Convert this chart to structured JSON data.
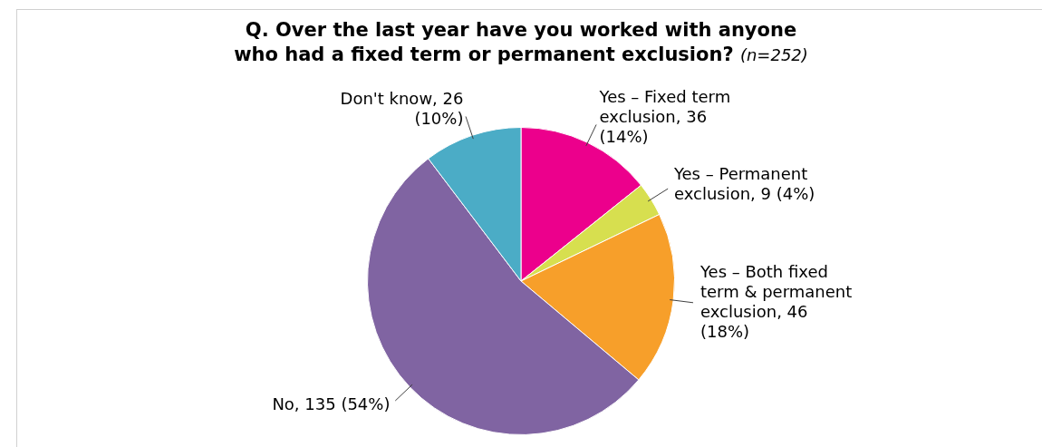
{
  "chart_data": {
    "type": "pie",
    "title": "Q. Over the last year have you worked with anyone who had a fixed term or permanent exclusion?",
    "subtitle": "(n=252)",
    "categories": [
      "Yes – Fixed term exclusion",
      "Yes – Permanent exclusion",
      "Yes – Both fixed term & permanent exclusion",
      "No",
      "Don't know"
    ],
    "values": [
      36,
      9,
      46,
      135,
      26
    ],
    "value_labels": [
      "36 (14%)",
      "9 (4%)",
      "46 (18%)",
      "135 (54%)",
      "26 (10%)"
    ],
    "colors": [
      "#ec008c",
      "#d7df4f",
      "#f79f2a",
      "#8064a2",
      "#4bacc6"
    ],
    "legend": false
  }
}
